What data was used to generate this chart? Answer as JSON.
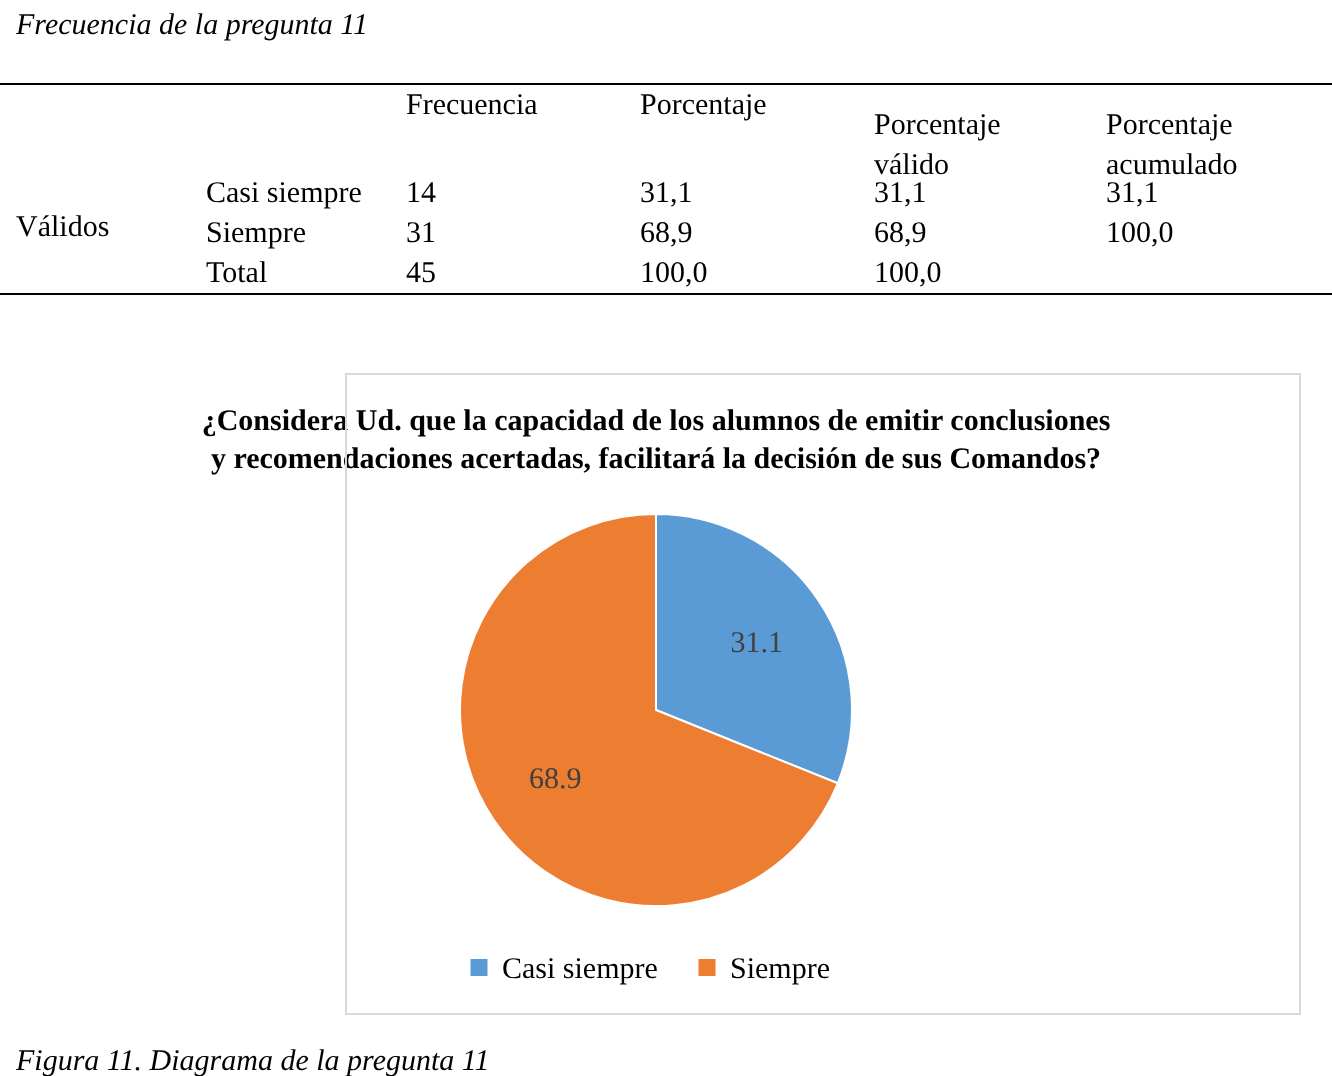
{
  "chart_data": {
    "type": "pie",
    "title": [
      "¿Considera Ud. que la capacidad de los alumnos de emitir conclusiones",
      "y recomendaciones acertadas, facilitará la decisión de sus Comandos?"
    ],
    "categories": [
      "Casi siempre",
      "Siempre"
    ],
    "values": [
      31.1,
      68.9
    ],
    "colors": [
      "#5b9bd5",
      "#ed7d31"
    ],
    "data_labels": true,
    "legend": "bottom",
    "annotations": [
      "Frecuencia de la pregunta 11",
      "Frecuencia",
      "Porcentaje",
      "Porcentaje\nválido",
      "Porcentaje\nacumulado",
      "Válidos",
      "Casi siempre",
      "14",
      "31,1",
      "31,1",
      "31,1",
      "Siempre",
      "31",
      "68,9",
      "68,9",
      "100,0",
      "Total",
      "45",
      "100,0",
      "100,0",
      "Figura 11. Diagrama de la pregunta 11"
    ]
  }
}
